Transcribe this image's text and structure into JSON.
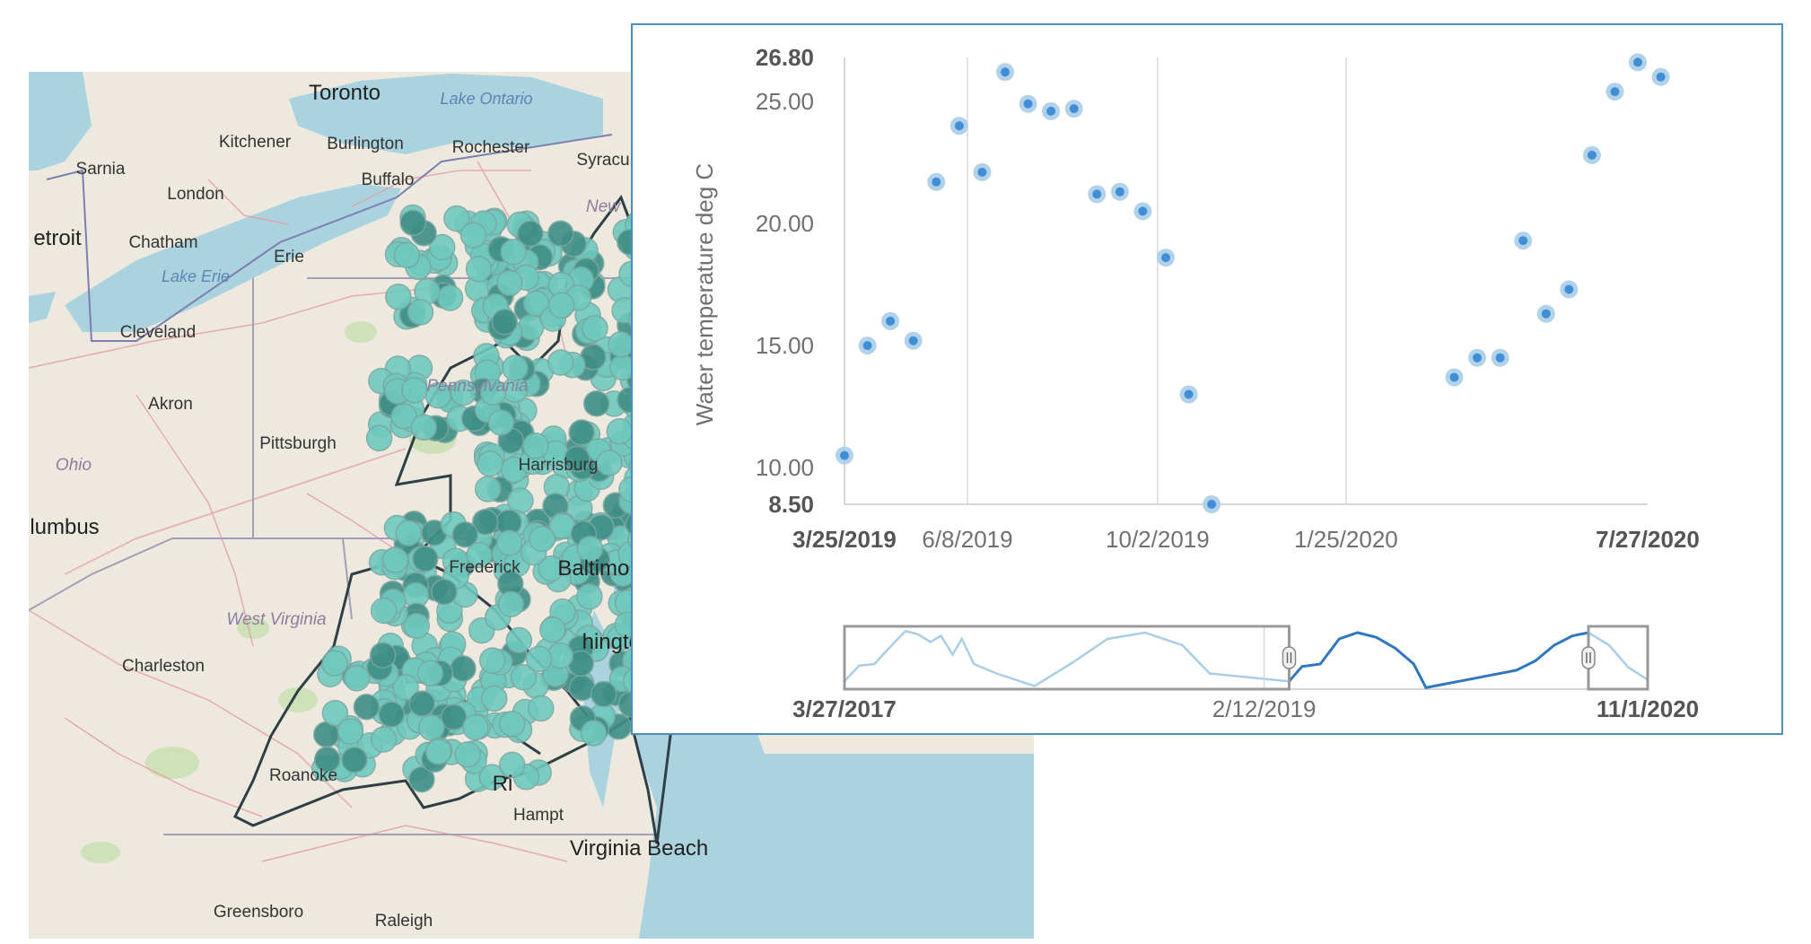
{
  "map": {
    "labels": {
      "toronto": "Toronto",
      "lake_ontario": "Lake Ontario",
      "kitchener": "Kitchener",
      "burlington": "Burlington",
      "rochester": "Rochester",
      "syracuse": "Syracu",
      "sarnia": "Sarnia",
      "buffalo": "Buffalo",
      "london": "London",
      "new_york": "New",
      "detroit": "etroit",
      "chatham": "Chatham",
      "erie": "Erie",
      "lake_erie": "Lake Erie",
      "cleveland": "Cleveland",
      "pennsylvania": "Pennsylvania",
      "akron": "Akron",
      "pittsburgh": "Pittsburgh",
      "ohio": "Ohio",
      "harrisburg": "Harrisburg",
      "columbus": "lumbus",
      "frederick": "Frederick",
      "baltimore": "Baltimore",
      "west_virginia": "West Virginia",
      "washington": "hington",
      "charleston": "Charleston",
      "roanoke": "Roanoke",
      "richmond": "Ri",
      "hampton": "Hampt",
      "virginia_beach": "Virginia Beach",
      "greensboro": "Greensboro",
      "raleigh": "Raleigh"
    },
    "colors": {
      "land": "#ede9df",
      "water": "#aad3df",
      "marker": "#6fc9be",
      "marker_dark": "#3f8f86",
      "boundary": "#2f3f46"
    }
  },
  "chart_data": {
    "type": "scatter",
    "ylabel": "Water temperature deg C",
    "ylim": [
      8.5,
      26.8
    ],
    "y_ticks": [
      {
        "value": 26.8,
        "label": "26.80",
        "bold": true
      },
      {
        "value": 25,
        "label": "25.00",
        "bold": false
      },
      {
        "value": 20,
        "label": "20.00",
        "bold": false
      },
      {
        "value": 15,
        "label": "15.00",
        "bold": false
      },
      {
        "value": 10,
        "label": "10.00",
        "bold": false
      },
      {
        "value": 8.5,
        "label": "8.50",
        "bold": true
      }
    ],
    "xlim": [
      "3/25/2019",
      "7/27/2020"
    ],
    "x_ticks": [
      {
        "date": "3/25/2019",
        "label": "3/25/2019",
        "bold": true
      },
      {
        "date": "6/8/2019",
        "label": "6/8/2019",
        "bold": false
      },
      {
        "date": "10/2/2019",
        "label": "10/2/2019",
        "bold": false
      },
      {
        "date": "1/25/2020",
        "label": "1/25/2020",
        "bold": false
      },
      {
        "date": "7/27/2020",
        "label": "7/27/2020",
        "bold": true
      }
    ],
    "points": [
      {
        "x": "3/25/2019",
        "y": 10.5
      },
      {
        "x": "4/8/2019",
        "y": 15.0
      },
      {
        "x": "4/22/2019",
        "y": 16.0
      },
      {
        "x": "5/6/2019",
        "y": 15.2
      },
      {
        "x": "5/20/2019",
        "y": 21.7
      },
      {
        "x": "6/3/2019",
        "y": 24.0
      },
      {
        "x": "6/17/2019",
        "y": 22.1
      },
      {
        "x": "7/1/2019",
        "y": 26.2
      },
      {
        "x": "7/15/2019",
        "y": 24.9
      },
      {
        "x": "7/29/2019",
        "y": 24.6
      },
      {
        "x": "8/12/2019",
        "y": 24.7
      },
      {
        "x": "8/26/2019",
        "y": 21.2
      },
      {
        "x": "9/9/2019",
        "y": 21.3
      },
      {
        "x": "9/23/2019",
        "y": 20.5
      },
      {
        "x": "10/7/2019",
        "y": 18.6
      },
      {
        "x": "10/21/2019",
        "y": 13.0
      },
      {
        "x": "11/4/2019",
        "y": 8.5
      },
      {
        "x": "3/31/2020",
        "y": 13.7
      },
      {
        "x": "4/14/2020",
        "y": 14.5
      },
      {
        "x": "4/28/2020",
        "y": 14.5
      },
      {
        "x": "5/12/2020",
        "y": 19.3
      },
      {
        "x": "5/26/2020",
        "y": 16.3
      },
      {
        "x": "6/9/2020",
        "y": 17.3
      },
      {
        "x": "6/23/2020",
        "y": 22.8
      },
      {
        "x": "7/7/2020",
        "y": 25.4
      },
      {
        "x": "7/21/2020",
        "y": 26.6
      },
      {
        "x": "8/4/2020",
        "y": 26.0
      }
    ],
    "navigator": {
      "range": [
        "3/27/2017",
        "11/1/2020"
      ],
      "labels": [
        {
          "date": "3/27/2017",
          "label": "3/27/2017",
          "bold": true
        },
        {
          "date": "2/12/2019",
          "label": "2/12/2019",
          "bold": false
        },
        {
          "date": "11/1/2020",
          "label": "11/1/2020",
          "bold": true
        }
      ],
      "line_color": "#2f78bf",
      "selection_outside_color": "#a9cde6",
      "series": [
        {
          "x": "3/27/2017",
          "y": 10.5
        },
        {
          "x": "4/20/2017",
          "y": 15.5
        },
        {
          "x": "5/15/2017",
          "y": 16.0
        },
        {
          "x": "6/10/2017",
          "y": 21.5
        },
        {
          "x": "7/5/2017",
          "y": 26.5
        },
        {
          "x": "7/25/2017",
          "y": 25.5
        },
        {
          "x": "8/15/2017",
          "y": 23.0
        },
        {
          "x": "9/1/2017",
          "y": 25.0
        },
        {
          "x": "9/20/2017",
          "y": 19.0
        },
        {
          "x": "10/5/2017",
          "y": 24.0
        },
        {
          "x": "10/25/2017",
          "y": 16.0
        },
        {
          "x": "12/1/2017",
          "y": 13.0
        },
        {
          "x": "2/1/2018",
          "y": 9.0
        },
        {
          "x": "4/1/2018",
          "y": 16.0
        },
        {
          "x": "6/1/2018",
          "y": 24.0
        },
        {
          "x": "8/1/2018",
          "y": 26.0
        },
        {
          "x": "10/1/2018",
          "y": 22.0
        },
        {
          "x": "11/15/2018",
          "y": 13.0
        },
        {
          "x": "3/25/2019",
          "y": 10.5
        },
        {
          "x": "4/15/2019",
          "y": 15.2
        },
        {
          "x": "5/15/2019",
          "y": 16.0
        },
        {
          "x": "6/15/2019",
          "y": 24.0
        },
        {
          "x": "7/15/2019",
          "y": 26.0
        },
        {
          "x": "8/15/2019",
          "y": 24.5
        },
        {
          "x": "9/15/2019",
          "y": 21.0
        },
        {
          "x": "10/15/2019",
          "y": 16.0
        },
        {
          "x": "11/4/2019",
          "y": 8.5
        },
        {
          "x": "3/31/2020",
          "y": 14.0
        },
        {
          "x": "5/1/2020",
          "y": 17.0
        },
        {
          "x": "6/1/2020",
          "y": 22.0
        },
        {
          "x": "7/1/2020",
          "y": 25.0
        },
        {
          "x": "7/27/2020",
          "y": 26.0
        },
        {
          "x": "8/30/2020",
          "y": 22.0
        },
        {
          "x": "9/30/2020",
          "y": 15.0
        },
        {
          "x": "11/1/2020",
          "y": 11.0
        }
      ]
    },
    "marker_color": "#3f8ed6",
    "grid": true
  }
}
